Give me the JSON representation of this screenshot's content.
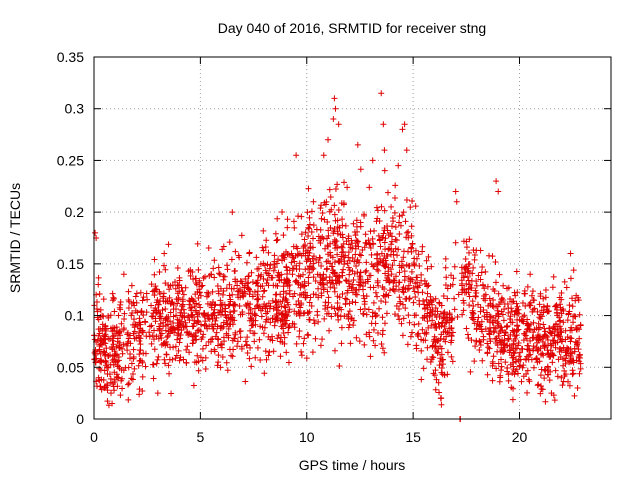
{
  "chart_data": {
    "type": "scatter",
    "title": "Day 040 of 2016, SRMTID for receiver stng",
    "xlabel": "GPS time / hours",
    "ylabel": "SRMTID / TECUs",
    "xlim": [
      0,
      24.3
    ],
    "ylim": [
      0,
      0.35
    ],
    "x_ticks": [
      "0",
      "5",
      "10",
      "15",
      "20"
    ],
    "x_tick_values": [
      0,
      5,
      10,
      15,
      20
    ],
    "y_ticks": [
      "0",
      "0.05",
      "0.1",
      "0.15",
      "0.2",
      "0.25",
      "0.3",
      "0.35"
    ],
    "y_tick_values": [
      0,
      0.05,
      0.1,
      0.15,
      0.2,
      0.25,
      0.3,
      0.35
    ],
    "grid": true,
    "marker": "+",
    "color": "#e00000",
    "trend": {
      "description": "approximate mean SRMTID envelope across the day (hours, TECU)",
      "x": [
        0.0,
        0.5,
        1.0,
        2.0,
        3.0,
        4.0,
        5.0,
        6.0,
        7.0,
        8.0,
        9.0,
        10.0,
        11.0,
        12.0,
        13.0,
        14.0,
        15.0,
        15.8,
        16.3,
        17.0,
        17.5,
        18.5,
        19.0,
        20.0,
        21.0,
        22.0,
        22.9
      ],
      "y": [
        0.085,
        0.07,
        0.065,
        0.08,
        0.1,
        0.095,
        0.1,
        0.105,
        0.11,
        0.115,
        0.125,
        0.14,
        0.15,
        0.135,
        0.145,
        0.15,
        0.14,
        0.1,
        0.07,
        0.105,
        0.13,
        0.09,
        0.085,
        0.08,
        0.075,
        0.08,
        0.075
      ]
    },
    "outliers": [
      {
        "x": 0.05,
        "y": 0.18
      },
      {
        "x": 0.1,
        "y": 0.175
      },
      {
        "x": 0.2,
        "y": 0.13
      },
      {
        "x": 0.85,
        "y": 0.015
      },
      {
        "x": 0.8,
        "y": 0.025
      },
      {
        "x": 3.0,
        "y": 0.025
      },
      {
        "x": 3.3,
        "y": 0.16
      },
      {
        "x": 6.5,
        "y": 0.2
      },
      {
        "x": 9.5,
        "y": 0.255
      },
      {
        "x": 10.8,
        "y": 0.255
      },
      {
        "x": 11.0,
        "y": 0.27
      },
      {
        "x": 11.3,
        "y": 0.31
      },
      {
        "x": 11.35,
        "y": 0.3
      },
      {
        "x": 11.5,
        "y": 0.285
      },
      {
        "x": 11.25,
        "y": 0.29
      },
      {
        "x": 12.4,
        "y": 0.265
      },
      {
        "x": 13.1,
        "y": 0.25
      },
      {
        "x": 13.5,
        "y": 0.315
      },
      {
        "x": 13.6,
        "y": 0.285
      },
      {
        "x": 13.65,
        "y": 0.26
      },
      {
        "x": 14.3,
        "y": 0.245
      },
      {
        "x": 14.6,
        "y": 0.285
      },
      {
        "x": 14.5,
        "y": 0.28
      },
      {
        "x": 14.7,
        "y": 0.26
      },
      {
        "x": 16.3,
        "y": 0.02
      },
      {
        "x": 16.2,
        "y": 0.035
      },
      {
        "x": 17.2,
        "y": 0.0
      },
      {
        "x": 17.22,
        "y": 0.0
      },
      {
        "x": 17.0,
        "y": 0.22
      },
      {
        "x": 17.05,
        "y": 0.21
      },
      {
        "x": 18.9,
        "y": 0.23
      },
      {
        "x": 19.0,
        "y": 0.22
      },
      {
        "x": 22.4,
        "y": 0.16
      },
      {
        "x": 21.5,
        "y": 0.025
      },
      {
        "x": 20.5,
        "y": 0.14
      }
    ]
  }
}
